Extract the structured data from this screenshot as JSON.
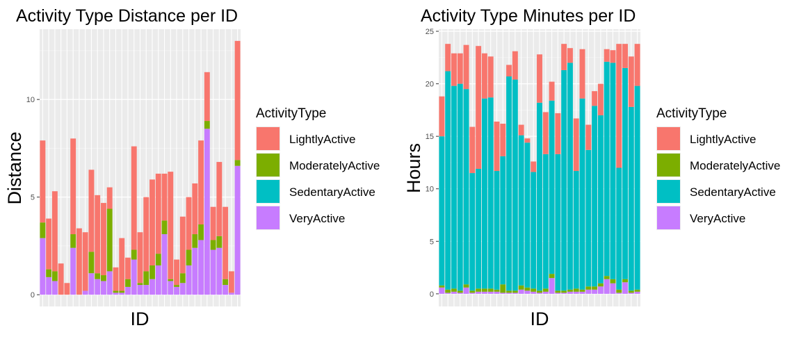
{
  "colors": {
    "LightlyActive": "#F8766D",
    "ModeratelyActive": "#7CAE00",
    "SedentaryActive": "#00BFC4",
    "VeryActive": "#C77CFF",
    "panel": "#EBEBEB",
    "grid_major": "#FFFFFF",
    "grid_minor": "#F5F5F5",
    "text": "#000000",
    "tick_text": "#4D4D4D"
  },
  "legend": {
    "title": "ActivityType",
    "entries": [
      "LightlyActive",
      "ModeratelyActive",
      "SedentaryActive",
      "VeryActive"
    ]
  },
  "chart_data": [
    {
      "type": "bar",
      "stacked": true,
      "title": "Activity Type Distance per ID",
      "xlabel": "ID",
      "ylabel": "Distance",
      "ylim": [
        -0.6,
        13.6
      ],
      "yticks": [
        0,
        5,
        10
      ],
      "ytick_labels": [
        "0",
        "5",
        "10"
      ],
      "n_categories": 33,
      "legend_position": "right",
      "series": [
        {
          "name": "VeryActive",
          "values": [
            2.9,
            0.9,
            0.7,
            0,
            0,
            2.4,
            0,
            0.2,
            1.1,
            0.8,
            0.7,
            1.2,
            0.1,
            0.1,
            0.4,
            1.8,
            0.5,
            0.5,
            0.8,
            1.5,
            3.1,
            0.7,
            0.4,
            0.6,
            1.5,
            2.4,
            2.8,
            8.5,
            2.3,
            2.4,
            0.5,
            0.1,
            6.6
          ]
        },
        {
          "name": "ModeratelyActive",
          "values": [
            0.8,
            0.4,
            0.5,
            0,
            0,
            0.7,
            0,
            0,
            1.1,
            0.3,
            0.3,
            3.2,
            0.1,
            0.1,
            0.4,
            0.5,
            0.1,
            0.7,
            0.7,
            0.6,
            0.7,
            0.1,
            0.1,
            0.5,
            0.8,
            0.7,
            0.8,
            0.4,
            0.5,
            0.6,
            0.3,
            0,
            0.3
          ]
        },
        {
          "name": "SedentaryActive",
          "values": [
            0,
            0,
            0,
            0,
            0,
            0,
            0,
            0,
            0,
            0,
            0,
            0,
            0,
            0,
            0,
            0,
            0,
            0,
            0,
            0,
            0,
            0,
            0,
            0,
            0,
            0,
            0,
            0,
            0,
            0,
            0,
            0,
            0
          ]
        },
        {
          "name": "LightlyActive",
          "values": [
            4.2,
            2.6,
            4.1,
            1.6,
            0.6,
            4.9,
            3.4,
            3.0,
            4.2,
            4.0,
            3.7,
            1.1,
            1.2,
            2.7,
            1.1,
            5.3,
            2.6,
            3.8,
            4.4,
            4.1,
            2.4,
            5.5,
            1.3,
            2.9,
            2.7,
            2.6,
            4.3,
            2.5,
            1.7,
            3.8,
            3.7,
            1.1,
            6.1
          ]
        }
      ]
    },
    {
      "type": "bar",
      "stacked": true,
      "title": "Activity Type Minutes per ID",
      "xlabel": "ID",
      "ylabel": "Hours",
      "ylim": [
        -1.2,
        25.2
      ],
      "yticks": [
        0,
        5,
        10,
        15,
        20,
        25
      ],
      "ytick_labels": [
        "0",
        "5",
        "10",
        "15",
        "20",
        "25"
      ],
      "n_categories": 33,
      "legend_position": "right",
      "series": [
        {
          "name": "VeryActive",
          "values": [
            0.6,
            0.1,
            0.2,
            0.1,
            0.6,
            0.1,
            0.2,
            0.2,
            0.2,
            0.2,
            0.1,
            0.1,
            0.1,
            0.4,
            0.3,
            0.2,
            0.1,
            0.2,
            1.5,
            0.1,
            0.1,
            0.2,
            0.2,
            0.2,
            0.4,
            0.4,
            0.7,
            1.4,
            1.0,
            0.1,
            1.1,
            0.1,
            0.2
          ]
        },
        {
          "name": "ModeratelyActive",
          "values": [
            0.2,
            0.3,
            0.3,
            0.2,
            0.3,
            0.2,
            0.3,
            0.3,
            0.3,
            0.2,
            0.8,
            0.2,
            0.2,
            0.4,
            0.3,
            0.3,
            0.2,
            0.3,
            0.4,
            0.2,
            0.2,
            0.2,
            0.3,
            0.2,
            0.3,
            0.3,
            0.3,
            0.3,
            0.4,
            0.3,
            0.3,
            0.2,
            0.2
          ]
        },
        {
          "name": "SedentaryActive",
          "values": [
            14.2,
            20.8,
            19.3,
            19.7,
            18.6,
            11.2,
            11.4,
            18.1,
            18.2,
            11.3,
            12.2,
            20.4,
            20.1,
            14.3,
            13.8,
            11.1,
            17.9,
            12.8,
            16.5,
            13.0,
            21.0,
            21.6,
            11.2,
            18.2,
            13.0,
            17.2,
            16.0,
            20.4,
            20.6,
            11.6,
            20.1,
            17.5,
            19.4
          ]
        },
        {
          "name": "LightlyActive",
          "values": [
            3.8,
            2.6,
            3.1,
            2.9,
            4.2,
            4.4,
            11.7,
            4.3,
            3.9,
            4.7,
            3.1,
            1.1,
            2.7,
            1.0,
            0.4,
            1.0,
            4.6,
            4.0,
            1.8,
            3.9,
            2.5,
            1.4,
            5.0,
            4.7,
            2.4,
            1.4,
            3.0,
            1.2,
            1.2,
            11.8,
            2.3,
            4.8,
            4.0
          ]
        }
      ]
    }
  ]
}
